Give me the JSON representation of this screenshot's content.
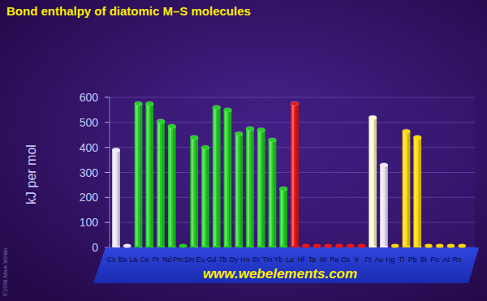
{
  "chart_data": {
    "type": "bar",
    "title": "Bond enthalpy of diatomic M–S molecules",
    "y_label": "kJ per mol",
    "source": "www.webelements.com",
    "credit": "©1998 Mark Winter",
    "categories": [
      "Cs",
      "Ba",
      "La",
      "Ce",
      "Pr",
      "Nd",
      "Pm",
      "Sm",
      "Eu",
      "Gd",
      "Tb",
      "Dy",
      "Ho",
      "Er",
      "Tm",
      "Yb",
      "Lu",
      "Hf",
      "Ta",
      "W",
      "Re",
      "Os",
      "Ir",
      "Pt",
      "Au",
      "Hg",
      "Tl",
      "Pb",
      "Bi",
      "Po",
      "At",
      "Rn"
    ],
    "values": [
      390,
      null,
      575,
      575,
      505,
      485,
      null,
      440,
      400,
      560,
      550,
      455,
      475,
      470,
      430,
      235,
      575,
      null,
      null,
      null,
      null,
      null,
      null,
      520,
      330,
      null,
      465,
      440,
      null,
      null,
      null,
      null
    ],
    "colors": [
      "#ece6f6",
      "#ece6f6",
      "#22d022",
      "#22d022",
      "#22d022",
      "#22d022",
      "#22d022",
      "#22d022",
      "#22d022",
      "#22d022",
      "#22d022",
      "#22d022",
      "#22d022",
      "#22d022",
      "#22d022",
      "#22d022",
      "#ee1515",
      "#ee1515",
      "#ee1515",
      "#ee1515",
      "#ee1515",
      "#ee1515",
      "#ee1515",
      "#fffbd0",
      "#ece6f6",
      "#ffd800",
      "#ffd800",
      "#ffd800",
      "#ffd800",
      "#ffd800",
      "#ffd800",
      "#ffd800"
    ],
    "ylim": [
      0,
      600
    ],
    "yticks": [
      0,
      100,
      200,
      300,
      400,
      500,
      600
    ],
    "grid": true
  }
}
